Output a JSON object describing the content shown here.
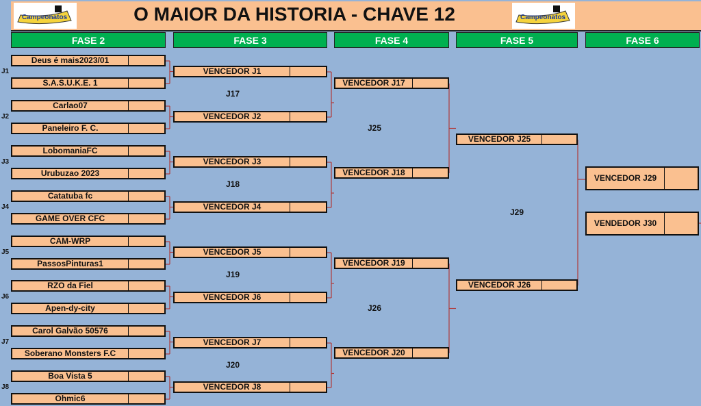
{
  "header": {
    "title": "O MAIOR DA HISTORIA - CHAVE 12",
    "logo_text": "Sai Campeonatos"
  },
  "phases": [
    "FASE 2",
    "FASE 3",
    "FASE 4",
    "FASE 5",
    "FASE 6"
  ],
  "fase2": {
    "labels": [
      "J1",
      "J2",
      "J3",
      "J4",
      "J5",
      "J6",
      "J7",
      "J8"
    ],
    "teams": [
      "Deus é mais2023/01",
      "S.A.S.U.K.E. 1",
      "Carlao07",
      "Paneleiro F. C.",
      "LobomaniaFC",
      "Urubuzao 2023",
      "Catatuba fc",
      "GAME OVER CFC",
      "CAM-WRP",
      "PassosPinturas1",
      "RZO da Fiel",
      "Apen-dy-city",
      "Carol Galvão 50576",
      "Soberano Monsters F.C",
      "Boa Vista 5",
      "Ohmic6"
    ]
  },
  "fase3": {
    "labels": [
      "J17",
      "J18",
      "J19",
      "J20"
    ],
    "teams": [
      "VENCEDOR J1",
      "VENCEDOR J2",
      "VENCEDOR J3",
      "VENCEDOR J4",
      "VENCEDOR J5",
      "VENCEDOR J6",
      "VENCEDOR J7",
      "VENCEDOR J8"
    ]
  },
  "fase4": {
    "labels": [
      "J25",
      "J26"
    ],
    "teams": [
      "VENCEDOR J17",
      "VENCEDOR J18",
      "VENCEDOR J19",
      "VENCEDOR J20"
    ]
  },
  "fase5": {
    "labels": [
      "J29"
    ],
    "teams": [
      "VENCEDOR J25",
      "VENCEDOR J26"
    ]
  },
  "fase6": {
    "teams": [
      "VENCEDOR J29",
      "VENDEDOR J30"
    ]
  },
  "colors": {
    "background": "#95b3d7",
    "header": "#fac090",
    "phase": "#00b050",
    "connector": "#c0504d"
  }
}
